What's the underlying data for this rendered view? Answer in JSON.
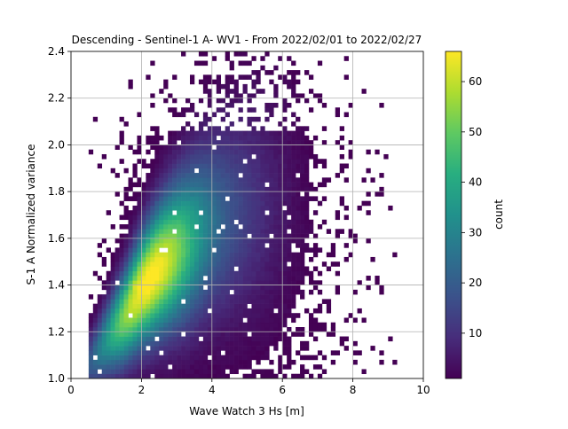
{
  "chart_data": {
    "type": "heatmap",
    "title": "Descending - Sentinel-1 A- WV1 - From 2022/02/01 to 2022/02/27",
    "xlabel": "Wave Watch 3 Hs [m]",
    "ylabel": "S-1 A Normalized variance",
    "xlim": [
      0,
      10
    ],
    "ylim": [
      1.0,
      2.4
    ],
    "x_ticks": [
      "0",
      "2",
      "4",
      "6",
      "8",
      "10"
    ],
    "y_ticks": [
      "1.0",
      "1.2",
      "1.4",
      "1.6",
      "1.8",
      "2.0",
      "2.2",
      "2.4"
    ],
    "grid": true,
    "colormap": "viridis",
    "colorbar": {
      "label": "count",
      "range": [
        1,
        66
      ],
      "ticks": [
        "10",
        "20",
        "30",
        "40",
        "50",
        "60"
      ]
    },
    "density_ridge": [
      {
        "x": 1.0,
        "y": 1.16
      },
      {
        "x": 1.5,
        "y": 1.26
      },
      {
        "x": 2.0,
        "y": 1.38
      },
      {
        "x": 2.5,
        "y": 1.47
      },
      {
        "x": 3.0,
        "y": 1.54
      },
      {
        "x": 3.5,
        "y": 1.6
      },
      {
        "x": 4.0,
        "y": 1.66
      },
      {
        "x": 5.0,
        "y": 1.72
      },
      {
        "x": 6.0,
        "y": 1.76
      },
      {
        "x": 7.0,
        "y": 1.8
      }
    ],
    "peak": {
      "x": 1.95,
      "y": 1.39,
      "count": 66
    }
  }
}
